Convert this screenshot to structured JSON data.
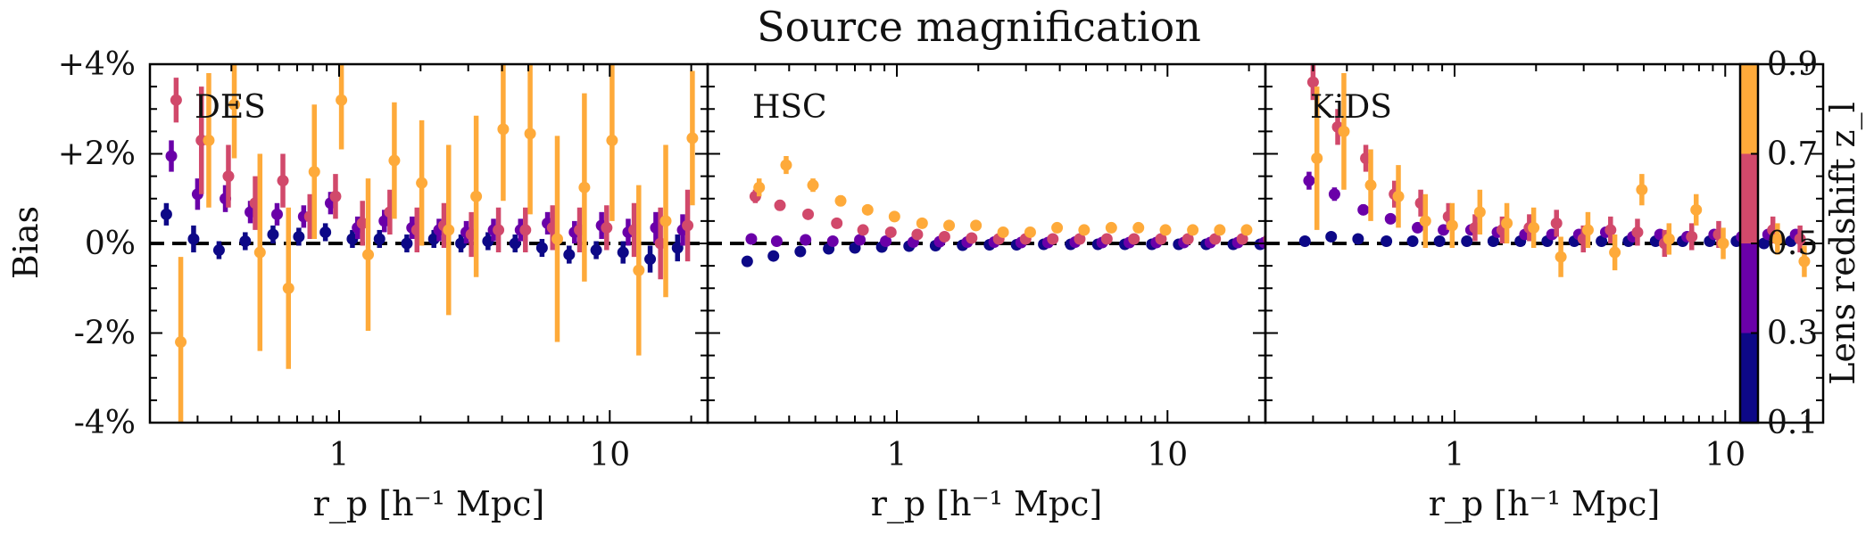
{
  "chart_data": {
    "type": "scatter",
    "title": "Source magnification",
    "ylabel": "Bias",
    "xlabel": "r_p [h⁻¹ Mpc]",
    "xscale": "log",
    "xlim": [
      0.2,
      23
    ],
    "ylim": [
      -4,
      4
    ],
    "xticks": [
      1,
      10
    ],
    "xtick_labels": [
      "1",
      "10"
    ],
    "yticks": [
      -4,
      -2,
      0,
      2,
      4
    ],
    "ytick_labels": [
      "-4%",
      "-2%",
      "0%",
      "+2%",
      "+4%"
    ],
    "reference_line": {
      "y": 0,
      "style": "dashed"
    },
    "colorbar": {
      "label": "Lens redshift z_l",
      "placement": "right",
      "ticks": [
        0.1,
        0.3,
        0.5,
        0.7,
        0.9
      ],
      "tick_labels": [
        "0.1",
        "0.3",
        "0.5",
        "0.7",
        "0.9"
      ],
      "colors": [
        "#0d0887",
        "#6a00a8",
        "#d1496b",
        "#feaa3a"
      ]
    },
    "panels": [
      {
        "name": "DES",
        "series": [
          {
            "color": "#0d0887",
            "x": [
              0.23,
              0.29,
              0.36,
              0.45,
              0.57,
              0.71,
              0.89,
              1.12,
              1.41,
              1.78,
              2.24,
              2.82,
              3.55,
              4.47,
              5.62,
              7.08,
              8.91,
              11.2,
              14.1,
              17.8
            ],
            "y": [
              0.65,
              0.1,
              -0.15,
              0.05,
              0.2,
              0.15,
              0.25,
              0.1,
              0.1,
              0.0,
              0.1,
              0.0,
              0.05,
              0.0,
              -0.1,
              -0.25,
              -0.15,
              -0.2,
              -0.35,
              -0.1
            ],
            "err": [
              0.25,
              0.3,
              0.2,
              0.2,
              0.2,
              0.2,
              0.2,
              0.2,
              0.2,
              0.2,
              0.2,
              0.2,
              0.2,
              0.2,
              0.2,
              0.2,
              0.2,
              0.25,
              0.3,
              0.3
            ]
          },
          {
            "color": "#6a00a8",
            "x": [
              0.24,
              0.3,
              0.38,
              0.47,
              0.59,
              0.74,
              0.93,
              1.17,
              1.47,
              1.86,
              2.34,
              2.95,
              3.72,
              4.68,
              5.89,
              7.41,
              9.33,
              11.7,
              14.8,
              18.6
            ],
            "y": [
              1.95,
              1.1,
              1.0,
              0.7,
              0.65,
              0.6,
              0.9,
              0.35,
              0.5,
              0.35,
              0.3,
              0.25,
              0.3,
              0.3,
              0.45,
              0.25,
              0.4,
              0.25,
              0.35,
              0.3
            ],
            "err": [
              0.35,
              0.35,
              0.3,
              0.25,
              0.25,
              0.25,
              0.25,
              0.25,
              0.25,
              0.25,
              0.25,
              0.25,
              0.25,
              0.25,
              0.25,
              0.25,
              0.3,
              0.3,
              0.35,
              0.35
            ]
          },
          {
            "color": "#d1496b",
            "x": [
              0.25,
              0.31,
              0.39,
              0.49,
              0.62,
              0.78,
              0.97,
              1.22,
              1.54,
              1.94,
              2.44,
              3.08,
              3.88,
              4.88,
              6.15,
              7.74,
              9.74,
              12.3,
              15.4,
              19.4
            ],
            "y": [
              3.2,
              2.3,
              1.5,
              0.9,
              1.4,
              0.6,
              1.05,
              0.45,
              0.7,
              0.3,
              0.4,
              0.2,
              0.3,
              0.3,
              0.35,
              0.3,
              0.35,
              0.3,
              0.0,
              0.4
            ],
            "err": [
              0.5,
              1.2,
              0.7,
              0.6,
              0.6,
              0.5,
              0.5,
              0.5,
              0.5,
              0.5,
              0.5,
              0.5,
              0.5,
              0.5,
              0.5,
              0.5,
              0.5,
              0.6,
              0.8,
              0.8
            ]
          },
          {
            "color": "#feaa3a",
            "x": [
              0.26,
              0.33,
              0.41,
              0.51,
              0.65,
              0.81,
              1.02,
              1.28,
              1.6,
              2.02,
              2.54,
              3.21,
              4.04,
              5.08,
              6.4,
              8.06,
              10.2,
              12.8,
              16.1,
              20.2
            ],
            "y": [
              -2.2,
              2.3,
              3.1,
              -0.2,
              -1.0,
              1.6,
              3.2,
              -0.25,
              1.85,
              1.35,
              0.3,
              1.05,
              2.55,
              2.45,
              0.1,
              1.25,
              2.3,
              -0.6,
              0.5,
              2.35
            ],
            "err": [
              1.9,
              1.5,
              1.2,
              2.2,
              1.8,
              1.5,
              1.1,
              1.7,
              1.3,
              1.4,
              1.9,
              1.8,
              1.6,
              1.8,
              2.3,
              2.1,
              1.8,
              1.9,
              1.7,
              1.5
            ]
          }
        ]
      },
      {
        "name": "HSC",
        "series": [
          {
            "color": "#0d0887",
            "x": [
              0.28,
              0.35,
              0.44,
              0.56,
              0.7,
              0.88,
              1.11,
              1.39,
              1.75,
              2.2,
              2.77,
              3.49,
              4.39,
              5.53,
              6.96,
              8.76,
              11.0,
              13.9,
              17.5,
              22.0
            ],
            "y": [
              -0.4,
              -0.28,
              -0.18,
              -0.12,
              -0.1,
              -0.08,
              -0.06,
              -0.05,
              -0.04,
              -0.03,
              -0.03,
              -0.02,
              -0.02,
              -0.02,
              -0.02,
              -0.02,
              -0.02,
              -0.02,
              -0.02,
              -0.02
            ],
            "err": [
              0.08,
              0.07,
              0.06,
              0.05,
              0.05,
              0.05,
              0.05,
              0.05,
              0.05,
              0.05,
              0.05,
              0.05,
              0.05,
              0.05,
              0.05,
              0.05,
              0.05,
              0.05,
              0.05,
              0.05
            ]
          },
          {
            "color": "#6a00a8",
            "x": [
              0.29,
              0.36,
              0.46,
              0.58,
              0.73,
              0.91,
              1.15,
              1.44,
              1.82,
              2.29,
              2.88,
              3.62,
              4.56,
              5.74,
              7.23,
              9.1,
              11.5,
              14.4,
              18.2,
              22.8
            ],
            "y": [
              0.1,
              0.05,
              0.08,
              0.05,
              0.08,
              0.05,
              0.03,
              0.04,
              0.03,
              0.03,
              0.02,
              0.02,
              0.03,
              0.02,
              0.02,
              0.02,
              0.02,
              0.02,
              0.02,
              0.02
            ],
            "err": [
              0.06,
              0.05,
              0.05,
              0.05,
              0.05,
              0.05,
              0.05,
              0.05,
              0.05,
              0.05,
              0.05,
              0.05,
              0.05,
              0.05,
              0.05,
              0.05,
              0.05,
              0.05,
              0.05,
              0.05
            ]
          },
          {
            "color": "#d1496b",
            "x": [
              0.3,
              0.37,
              0.47,
              0.6,
              0.75,
              0.95,
              1.19,
              1.5,
              1.89,
              2.38,
              2.99,
              3.77,
              4.74,
              5.97,
              7.52,
              9.46,
              11.9,
              15.0,
              18.9,
              23.7
            ],
            "y": [
              1.05,
              0.85,
              0.65,
              0.45,
              0.3,
              0.25,
              0.2,
              0.15,
              0.12,
              0.1,
              0.1,
              0.1,
              0.1,
              0.1,
              0.1,
              0.1,
              0.1,
              0.1,
              0.1,
              0.1
            ],
            "err": [
              0.15,
              0.12,
              0.1,
              0.08,
              0.07,
              0.06,
              0.06,
              0.05,
              0.05,
              0.05,
              0.05,
              0.05,
              0.05,
              0.05,
              0.05,
              0.05,
              0.05,
              0.05,
              0.05,
              0.05
            ]
          },
          {
            "color": "#feaa3a",
            "x": [
              0.31,
              0.39,
              0.49,
              0.62,
              0.78,
              0.98,
              1.24,
              1.56,
              1.96,
              2.47,
              3.11,
              3.91,
              4.92,
              6.2,
              7.81,
              9.83,
              12.4,
              15.6,
              19.6,
              24.7
            ],
            "y": [
              1.25,
              1.75,
              1.3,
              0.95,
              0.75,
              0.6,
              0.45,
              0.4,
              0.4,
              0.25,
              0.25,
              0.35,
              0.3,
              0.35,
              0.35,
              0.3,
              0.3,
              0.3,
              0.3,
              0.25
            ],
            "err": [
              0.2,
              0.2,
              0.15,
              0.12,
              0.1,
              0.08,
              0.07,
              0.06,
              0.06,
              0.06,
              0.06,
              0.06,
              0.06,
              0.06,
              0.06,
              0.06,
              0.06,
              0.06,
              0.06,
              0.06
            ]
          }
        ]
      },
      {
        "name": "KiDS",
        "series": [
          {
            "color": "#0d0887",
            "x": [
              0.28,
              0.35,
              0.44,
              0.56,
              0.7,
              0.88,
              1.11,
              1.39,
              1.75,
              2.2,
              2.77,
              3.49,
              4.39,
              5.53,
              6.96,
              8.76,
              11.0,
              13.9,
              17.5
            ],
            "y": [
              0.05,
              0.15,
              0.1,
              0.05,
              0.05,
              0.05,
              0.05,
              0.05,
              0.05,
              0.05,
              0.05,
              0.05,
              0.05,
              0.05,
              0.05,
              0.05,
              0.05,
              0.0,
              0.05
            ],
            "err": [
              0.1,
              0.1,
              0.1,
              0.08,
              0.08,
              0.08,
              0.08,
              0.08,
              0.08,
              0.08,
              0.08,
              0.08,
              0.08,
              0.08,
              0.08,
              0.08,
              0.08,
              0.08,
              0.1
            ]
          },
          {
            "color": "#6a00a8",
            "x": [
              0.29,
              0.36,
              0.46,
              0.58,
              0.73,
              0.91,
              1.15,
              1.44,
              1.82,
              2.29,
              2.88,
              3.62,
              4.56,
              5.74,
              7.23,
              9.1,
              11.5,
              14.4,
              18.2
            ],
            "y": [
              1.4,
              1.1,
              0.75,
              0.55,
              0.35,
              0.3,
              0.3,
              0.25,
              0.2,
              0.2,
              0.2,
              0.25,
              0.15,
              0.2,
              0.15,
              0.2,
              0.15,
              0.2,
              0.2
            ],
            "err": [
              0.2,
              0.15,
              0.12,
              0.1,
              0.1,
              0.1,
              0.1,
              0.1,
              0.1,
              0.1,
              0.1,
              0.1,
              0.1,
              0.1,
              0.1,
              0.1,
              0.1,
              0.1,
              0.1
            ]
          },
          {
            "color": "#d1496b",
            "x": [
              0.3,
              0.37,
              0.47,
              0.6,
              0.75,
              0.95,
              1.19,
              1.5,
              1.89,
              2.38,
              2.99,
              3.77,
              4.74,
              5.97,
              7.52,
              9.46,
              11.9,
              15.0,
              18.9
            ],
            "y": [
              3.6,
              2.6,
              1.9,
              1.1,
              0.9,
              0.6,
              0.35,
              0.3,
              0.35,
              0.45,
              0.1,
              0.3,
              0.25,
              0.0,
              0.15,
              0.2,
              0.1,
              0.3,
              0.1
            ],
            "err": [
              0.4,
              0.4,
              0.3,
              0.3,
              0.3,
              0.3,
              0.3,
              0.3,
              0.3,
              0.3,
              0.3,
              0.3,
              0.3,
              0.3,
              0.3,
              0.3,
              0.3,
              0.3,
              0.3
            ]
          },
          {
            "color": "#feaa3a",
            "x": [
              0.31,
              0.39,
              0.49,
              0.62,
              0.78,
              0.98,
              1.24,
              1.56,
              1.96,
              2.47,
              3.11,
              3.91,
              4.92,
              6.2,
              7.81,
              9.83,
              12.4,
              15.6,
              19.6
            ],
            "y": [
              1.9,
              2.5,
              1.3,
              1.05,
              0.5,
              0.4,
              0.7,
              0.45,
              0.35,
              -0.3,
              0.3,
              -0.2,
              1.2,
              0.1,
              0.75,
              0.0,
              -0.25,
              0.1,
              -0.4
            ],
            "err": [
              1.6,
              1.3,
              0.8,
              0.7,
              0.6,
              0.5,
              0.5,
              0.45,
              0.45,
              0.45,
              0.4,
              0.4,
              0.35,
              0.35,
              0.35,
              0.35,
              0.35,
              0.35,
              0.35
            ]
          }
        ]
      }
    ]
  }
}
